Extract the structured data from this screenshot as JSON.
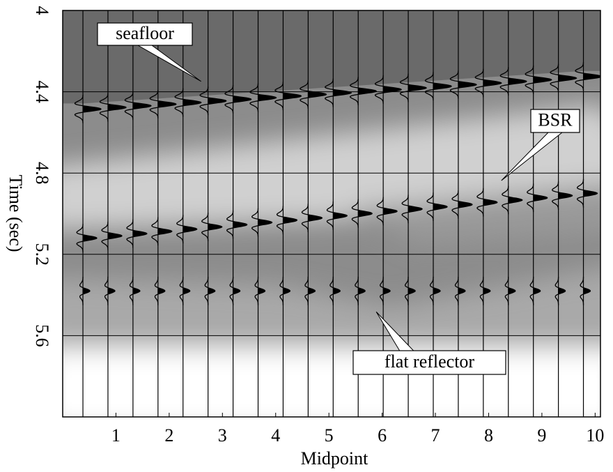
{
  "chart_data": {
    "type": "seismic",
    "xlabel": "Midpoint",
    "ylabel": "Time (sec)",
    "x": [
      0.38,
      0.85,
      1.32,
      1.79,
      2.26,
      2.73,
      3.2,
      3.67,
      4.14,
      4.61,
      5.08,
      5.55,
      6.02,
      6.49,
      6.96,
      7.43,
      7.9,
      8.37,
      8.84,
      9.31,
      9.78
    ],
    "xlim": [
      0,
      10.1
    ],
    "ylim": [
      6,
      4
    ],
    "xticks": [
      1,
      2,
      3,
      4,
      5,
      6,
      7,
      8,
      9,
      10
    ],
    "yticks": [
      4,
      4.4,
      4.8,
      5.2,
      5.6
    ],
    "grid": true,
    "series": [
      {
        "name": "seafloor",
        "color": "#000000",
        "values": [
          4.485,
          4.477,
          4.469,
          4.461,
          4.453,
          4.445,
          4.437,
          4.429,
          4.421,
          4.413,
          4.405,
          4.397,
          4.389,
          4.381,
          4.373,
          4.365,
          4.357,
          4.349,
          4.341,
          4.333,
          4.325
        ]
      },
      {
        "name": "BSR",
        "color": "#000000",
        "values": [
          5.12,
          5.109,
          5.098,
          5.087,
          5.076,
          5.065,
          5.054,
          5.043,
          5.032,
          5.021,
          5.01,
          4.999,
          4.988,
          4.977,
          4.966,
          4.955,
          4.944,
          4.933,
          4.922,
          4.911,
          4.9
        ]
      },
      {
        "name": "flat reflector",
        "color": "#000000",
        "values": [
          5.38,
          5.38,
          5.38,
          5.38,
          5.38,
          5.38,
          5.38,
          5.38,
          5.38,
          5.38,
          5.38,
          5.38,
          5.38,
          5.38,
          5.38,
          5.38,
          5.38,
          5.38,
          5.38,
          5.38,
          5.38
        ]
      }
    ]
  }
}
